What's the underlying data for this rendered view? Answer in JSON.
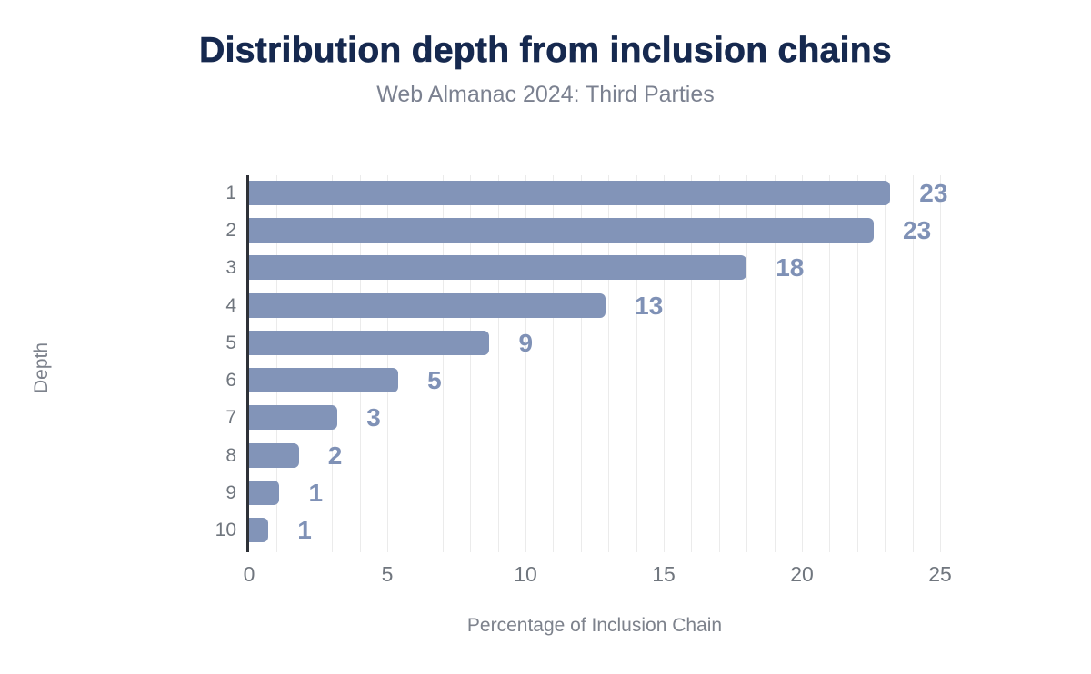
{
  "header": {
    "title": "Distribution depth from inclusion chains",
    "subtitle": "Web Almanac 2024: Third Parties"
  },
  "chart_data": {
    "type": "bar",
    "orientation": "horizontal",
    "title": "Distribution depth from inclusion chains",
    "subtitle": "Web Almanac 2024: Third Parties",
    "categories": [
      "1",
      "2",
      "3",
      "4",
      "5",
      "6",
      "7",
      "8",
      "9",
      "10"
    ],
    "values": [
      23.2,
      22.6,
      18.0,
      12.9,
      8.7,
      5.4,
      3.2,
      1.8,
      1.1,
      0.7
    ],
    "data_labels": [
      "23",
      "23",
      "18",
      "13",
      "9",
      "5",
      "3",
      "2",
      "1",
      "1"
    ],
    "xlabel": "Percentage of Inclusion Chain",
    "ylabel": "Depth",
    "xlim": [
      0,
      25
    ],
    "x_ticks": [
      0,
      5,
      10,
      15,
      20,
      25
    ],
    "grid_interval": 1,
    "grid": "vertical gridlines every 1 unit",
    "legend": "none",
    "colors": {
      "bar": "#8294b8",
      "value_label": "#7f91b6",
      "title": "#16294f",
      "subtitle": "#7b8190",
      "axis_text": "#70767e",
      "axis_label": "#7d828c",
      "axis_line": "#2e3137",
      "gridline": "#ebebeb",
      "background": "#ffffff"
    }
  }
}
